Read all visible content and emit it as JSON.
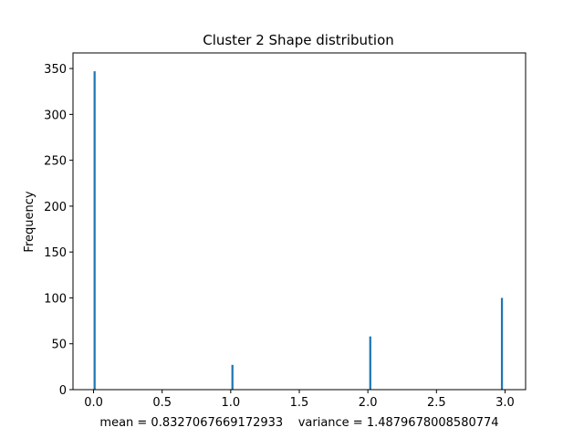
{
  "chart_data": {
    "type": "bar",
    "title": "Cluster 2 Shape distribution",
    "xlabel": "mean = 0.8327067669172933    variance = 1.4879678008580774",
    "ylabel": "Frequency",
    "xlim": [
      -0.15,
      3.15
    ],
    "ylim": [
      0,
      367
    ],
    "xticks": [
      0.0,
      0.5,
      1.0,
      1.5,
      2.0,
      2.5,
      3.0
    ],
    "xtick_labels": [
      "0.0",
      "0.5",
      "1.0",
      "1.5",
      "2.0",
      "2.5",
      "3.0"
    ],
    "yticks": [
      0,
      50,
      100,
      150,
      200,
      250,
      300,
      350
    ],
    "ytick_labels": [
      "0",
      "50",
      "100",
      "150",
      "200",
      "250",
      "300",
      "350"
    ],
    "bars": [
      {
        "x_start": 0.0,
        "x_end": 0.015,
        "value": 347
      },
      {
        "x_start": 1.005,
        "x_end": 1.02,
        "value": 27
      },
      {
        "x_start": 2.01,
        "x_end": 2.025,
        "value": 58
      },
      {
        "x_start": 2.97,
        "x_end": 2.985,
        "value": 100
      }
    ],
    "bar_color": "#1f77b4",
    "grid": false,
    "legend": "none"
  }
}
